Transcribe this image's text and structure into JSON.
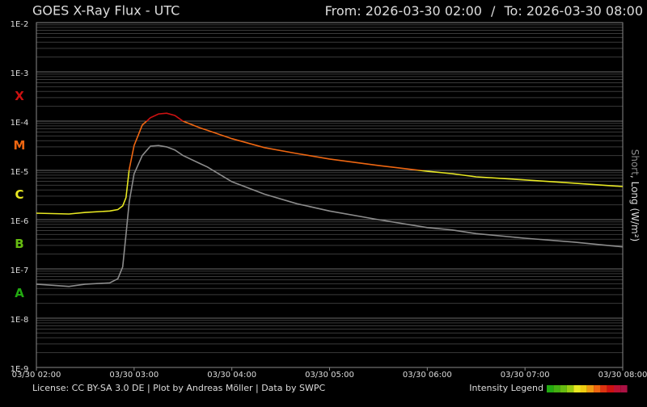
{
  "chart_data": {
    "type": "line",
    "title": "GOES X-Ray Flux - UTC",
    "range_from": "From: 2026-03-30 02:00",
    "range_to": "To: 2026-03-30 08:00",
    "range_separator": "/",
    "x": [
      "03/30 02:00",
      "03/30 02:20",
      "03/30 02:30",
      "03/30 02:45",
      "03/30 02:50",
      "03/30 02:53",
      "03/30 02:55",
      "03/30 02:57",
      "03/30 03:00",
      "03/30 03:05",
      "03/30 03:10",
      "03/30 03:15",
      "03/30 03:20",
      "03/30 03:25",
      "03/30 03:30",
      "03/30 03:40",
      "03/30 03:45",
      "03/30 04:00",
      "03/30 04:20",
      "03/30 04:40",
      "03/30 05:00",
      "03/30 05:30",
      "03/30 06:00",
      "03/30 06:15",
      "03/30 06:30",
      "03/30 07:00",
      "03/30 07:30",
      "03/30 08:00"
    ],
    "series": [
      {
        "name": "Short",
        "color": "#8c8c8c",
        "values": [
          4.9e-08,
          4.4e-08,
          4.9e-08,
          5.2e-08,
          6.3e-08,
          1.1e-07,
          5e-07,
          2.3e-06,
          8.5e-06,
          2e-05,
          3.1e-05,
          3.2e-05,
          3e-05,
          2.6e-05,
          2e-05,
          1.4e-05,
          1.17e-05,
          5.9e-06,
          3.3e-06,
          2.1e-06,
          1.5e-06,
          1e-06,
          6.9e-07,
          6.2e-07,
          5.2e-07,
          4.2e-07,
          3.5e-07,
          2.8e-07
        ]
      },
      {
        "name": "Long",
        "color_by_class": true,
        "values": [
          1.35e-06,
          1.3e-06,
          1.4e-06,
          1.5e-06,
          1.6e-06,
          1.9e-06,
          2.8e-06,
          1.05e-05,
          3.2e-05,
          8.3e-05,
          0.000117,
          0.00014,
          0.000145,
          0.00013,
          0.0001,
          7.4e-05,
          6.5e-05,
          4.4e-05,
          2.9e-05,
          2.2e-05,
          1.7e-05,
          1.26e-05,
          9.6e-06,
          8.6e-06,
          7.4e-06,
          6.4e-06,
          5.5e-06,
          4.7e-06
        ]
      }
    ],
    "legend_separator": ",",
    "y_unit": "(W/m²)",
    "log_scale": true,
    "grid": true,
    "ylim": [
      1e-09,
      0.01
    ],
    "yticks": [
      {
        "value": 1e-09,
        "label": "1E-9"
      },
      {
        "value": 1e-08,
        "label": "1E-8"
      },
      {
        "value": 1e-07,
        "label": "1E-7"
      },
      {
        "value": 1e-06,
        "label": "1E-6"
      },
      {
        "value": 1e-05,
        "label": "1E-5"
      },
      {
        "value": 0.0001,
        "label": "1E-4"
      },
      {
        "value": 0.001,
        "label": "1E-3"
      },
      {
        "value": 0.01,
        "label": "1E-2"
      }
    ],
    "xlim": [
      "03/30 02:00",
      "03/30 08:00"
    ],
    "xticks": [
      "03/30 02:00",
      "03/30 03:00",
      "03/30 04:00",
      "03/30 05:00",
      "03/30 06:00",
      "03/30 07:00",
      "03/30 08:00"
    ],
    "classes": [
      {
        "label": "A",
        "color": "#22aa11",
        "min": 1e-08
      },
      {
        "label": "B",
        "color": "#66bb11",
        "min": 1e-07
      },
      {
        "label": "C",
        "color": "#e8e822",
        "min": 1e-06
      },
      {
        "label": "M",
        "color": "#ee6611",
        "min": 1e-05
      },
      {
        "label": "X",
        "color": "#cc1111",
        "min": 0.0001
      }
    ],
    "footer": "License: CC BY-SA 3.0 DE | Plot by Andreas Möller | Data by SWPC",
    "intensity_legend": {
      "label": "Intensity Legend",
      "colors": [
        "#22aa11",
        "#44b011",
        "#66bb11",
        "#99cc11",
        "#e8e822",
        "#eecc11",
        "#ee9911",
        "#ee6611",
        "#dd3311",
        "#cc1111",
        "#bb1133",
        "#aa1144"
      ]
    }
  }
}
